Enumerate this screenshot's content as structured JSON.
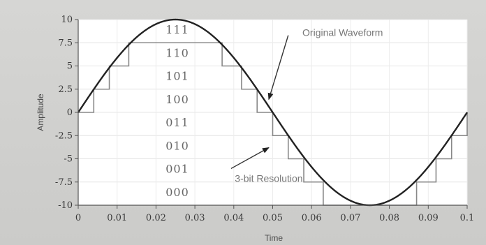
{
  "chart_data": {
    "type": "line",
    "title": "",
    "xlabel": "Time",
    "ylabel": "Amplitude",
    "xlim": [
      0,
      0.1
    ],
    "ylim": [
      -10,
      10
    ],
    "x_ticks": [
      "0",
      "0.01",
      "0.02",
      "0.03",
      "0.04",
      "0.05",
      "0.06",
      "0.07",
      "0.08",
      "0.09",
      "0.1"
    ],
    "x_tick_values": [
      0,
      0.01,
      0.02,
      0.03,
      0.04,
      0.05,
      0.06,
      0.07,
      0.08,
      0.09,
      0.1
    ],
    "y_ticks": [
      "10",
      "7.5",
      "5",
      "2.5",
      "0",
      "-2.5",
      "-5",
      "-7.5",
      "-10"
    ],
    "y_tick_values": [
      10,
      7.5,
      5,
      2.5,
      0,
      -2.5,
      -5,
      -7.5,
      -10
    ],
    "grid": true,
    "series": [
      {
        "kind": "sine",
        "amplitude": 10,
        "period": 0.1,
        "color": "#222222"
      },
      {
        "kind": "staircase",
        "color": "#888888",
        "steps": [
          {
            "x0": 0.0,
            "x1": 0.004,
            "y": 0
          },
          {
            "x0": 0.004,
            "x1": 0.008,
            "y": 2.5
          },
          {
            "x0": 0.008,
            "x1": 0.013,
            "y": 5
          },
          {
            "x0": 0.013,
            "x1": 0.037,
            "y": 7.5
          },
          {
            "x0": 0.037,
            "x1": 0.042,
            "y": 5
          },
          {
            "x0": 0.042,
            "x1": 0.046,
            "y": 2.5
          },
          {
            "x0": 0.046,
            "x1": 0.05,
            "y": 0
          },
          {
            "x0": 0.05,
            "x1": 0.054,
            "y": -2.5
          },
          {
            "x0": 0.054,
            "x1": 0.058,
            "y": -5
          },
          {
            "x0": 0.058,
            "x1": 0.063,
            "y": -7.5
          },
          {
            "x0": 0.063,
            "x1": 0.087,
            "y": -10
          },
          {
            "x0": 0.087,
            "x1": 0.092,
            "y": -7.5
          },
          {
            "x0": 0.092,
            "x1": 0.096,
            "y": -5
          },
          {
            "x0": 0.096,
            "x1": 0.1,
            "y": -2.5
          }
        ]
      }
    ],
    "codes": [
      {
        "label": "111",
        "y": 10
      },
      {
        "label": "110",
        "y": 7.5
      },
      {
        "label": "101",
        "y": 5
      },
      {
        "label": "100",
        "y": 2.5
      },
      {
        "label": "011",
        "y": 0
      },
      {
        "label": "010",
        "y": -2.5
      },
      {
        "label": "001",
        "y": -5
      },
      {
        "label": "000",
        "y": -7.5
      }
    ],
    "annotations": [
      {
        "text": "Original Waveform",
        "label_at": [
          0.068,
          8.6
        ],
        "arrow_to": [
          0.049,
          1.4
        ]
      },
      {
        "text": "3-bit Resolution",
        "label_at": [
          0.049,
          -7.1
        ],
        "arrow_to": [
          0.049,
          -3.8
        ]
      }
    ]
  }
}
